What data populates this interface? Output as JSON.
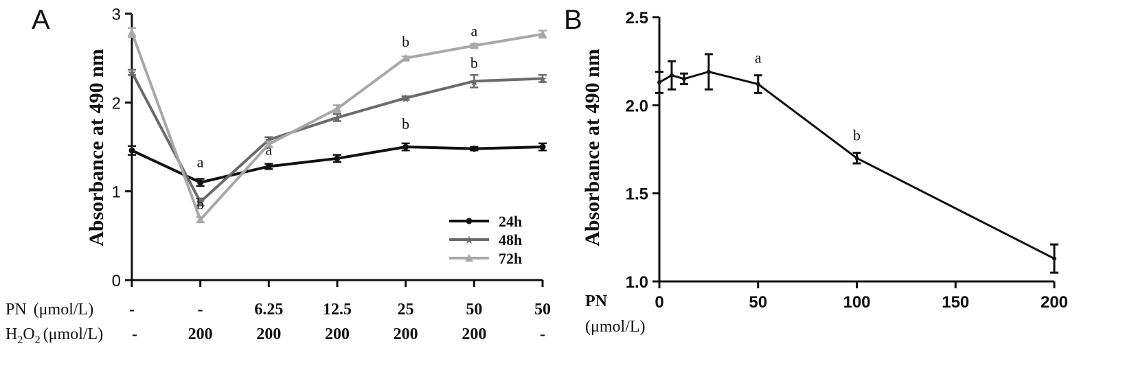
{
  "chart_data": [
    {
      "panel": "A",
      "type": "line",
      "ylabel": "Absorbance at 490 nm",
      "ylim": [
        0,
        3
      ],
      "yticks": [
        "0",
        "1",
        "2",
        "3"
      ],
      "rows": [
        {
          "label_main": "PN",
          "label_unit": "(μmol/L)",
          "values": [
            "-",
            "-",
            "6.25",
            "12.5",
            "25",
            "50",
            "50"
          ]
        },
        {
          "label_main": "H",
          "label_sub1": "2",
          "label_mid": "O",
          "label_sub2": "2",
          "label_unit": "(μmol/L)",
          "values": [
            "-",
            "200",
            "200",
            "200",
            "200",
            "200",
            "-"
          ]
        }
      ],
      "series": [
        {
          "name": "24h",
          "color": "#111111",
          "marker": "circle",
          "values": [
            1.46,
            1.1,
            1.28,
            1.37,
            1.5,
            1.48,
            1.5
          ],
          "errors": [
            0.05,
            0.04,
            0.03,
            0.04,
            0.04,
            0.02,
            0.04
          ]
        },
        {
          "name": "48h",
          "color": "#6b6b6b",
          "marker": "star",
          "values": [
            2.34,
            0.88,
            1.58,
            1.83,
            2.05,
            2.24,
            2.27
          ],
          "errors": [
            0.03,
            0.04,
            0.03,
            0.04,
            0.02,
            0.07,
            0.04
          ]
        },
        {
          "name": "72h",
          "color": "#a8a8a8",
          "marker": "triangle",
          "values": [
            2.79,
            0.68,
            1.53,
            1.93,
            2.5,
            2.64,
            2.77
          ],
          "errors": [
            0.05,
            0.03,
            0.03,
            0.04,
            0.02,
            0.02,
            0.04
          ]
        }
      ],
      "annotations": [
        {
          "text": "a",
          "index": 1,
          "y": 1.27
        },
        {
          "text": "b",
          "index": 1,
          "y": 0.8
        },
        {
          "text": "a",
          "index": 2,
          "y": 1.41
        },
        {
          "text": "b",
          "index": 4,
          "y": 1.7
        },
        {
          "text": "b",
          "index": 4,
          "y": 2.63
        },
        {
          "text": "b",
          "index": 5,
          "y": 2.39
        },
        {
          "text": "a",
          "index": 5,
          "y": 2.75
        }
      ],
      "legend": "bottom-right"
    },
    {
      "panel": "B",
      "type": "line",
      "ylabel": "Absorbance at 490 nm",
      "xlabel_main": "PN",
      "xlabel_unit": "(μmol/L)",
      "xlim": [
        0,
        200
      ],
      "ylim": [
        1.0,
        2.5
      ],
      "xticks": [
        "0",
        "50",
        "100",
        "150",
        "200"
      ],
      "yticks": [
        "1.0",
        "1.5",
        "2.0",
        "2.5"
      ],
      "x": [
        0,
        6.25,
        12.5,
        25,
        50,
        100,
        200
      ],
      "values": [
        2.13,
        2.17,
        2.15,
        2.19,
        2.12,
        1.7,
        1.13
      ],
      "errors": [
        0.06,
        0.08,
        0.03,
        0.1,
        0.05,
        0.03,
        0.08
      ],
      "annotations": [
        {
          "text": "a",
          "x": 50,
          "y": 2.24
        },
        {
          "text": "b",
          "x": 100,
          "y": 1.8
        }
      ]
    }
  ]
}
